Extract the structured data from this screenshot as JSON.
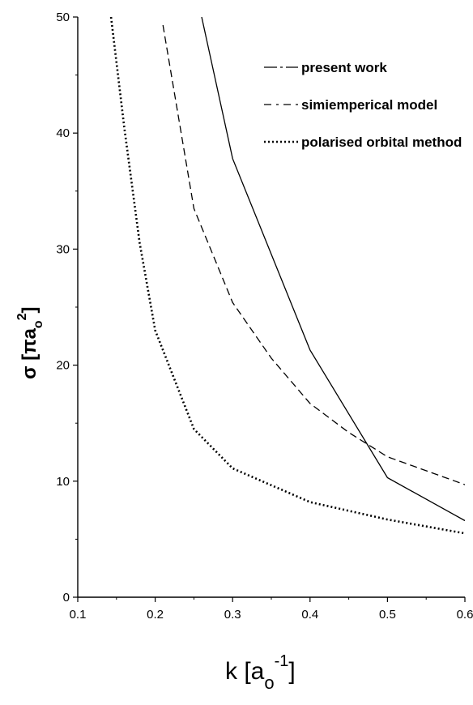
{
  "chart_data": {
    "type": "line",
    "xlabel": {
      "main": "k [a",
      "sub": "o",
      "sup": "-1",
      "close": "]"
    },
    "ylabel": {
      "main": "σ [πa",
      "sub": "o",
      "sup": "2",
      "close": "]"
    },
    "xlim": [
      0.1,
      0.6
    ],
    "ylim": [
      0,
      50
    ],
    "xticks": [
      "0.1",
      "0.2",
      "0.3",
      "0.4",
      "0.5",
      "0.6"
    ],
    "yticks": [
      "0",
      "10",
      "20",
      "30",
      "40",
      "50"
    ],
    "grid": false,
    "legend_position": "top-right",
    "series": [
      {
        "name": "present work",
        "style": "solid",
        "points": [
          [
            0.26,
            50.0
          ],
          [
            0.3,
            37.8
          ],
          [
            0.4,
            21.3
          ],
          [
            0.5,
            10.3
          ],
          [
            0.6,
            6.6
          ]
        ]
      },
      {
        "name": "simiemperical model",
        "style": "dashed",
        "points": [
          [
            0.21,
            49.3
          ],
          [
            0.25,
            33.5
          ],
          [
            0.3,
            25.4
          ],
          [
            0.35,
            20.6
          ],
          [
            0.4,
            16.7
          ],
          [
            0.45,
            14.2
          ],
          [
            0.5,
            12.1
          ],
          [
            0.6,
            9.7
          ]
        ]
      },
      {
        "name": "polarised orbital method",
        "style": "dotted",
        "points": [
          [
            0.143,
            50.0
          ],
          [
            0.16,
            40.5
          ],
          [
            0.18,
            30.5
          ],
          [
            0.2,
            23.0
          ],
          [
            0.25,
            14.5
          ],
          [
            0.3,
            11.1
          ],
          [
            0.4,
            8.2
          ],
          [
            0.5,
            6.7
          ],
          [
            0.6,
            5.5
          ]
        ]
      }
    ]
  }
}
